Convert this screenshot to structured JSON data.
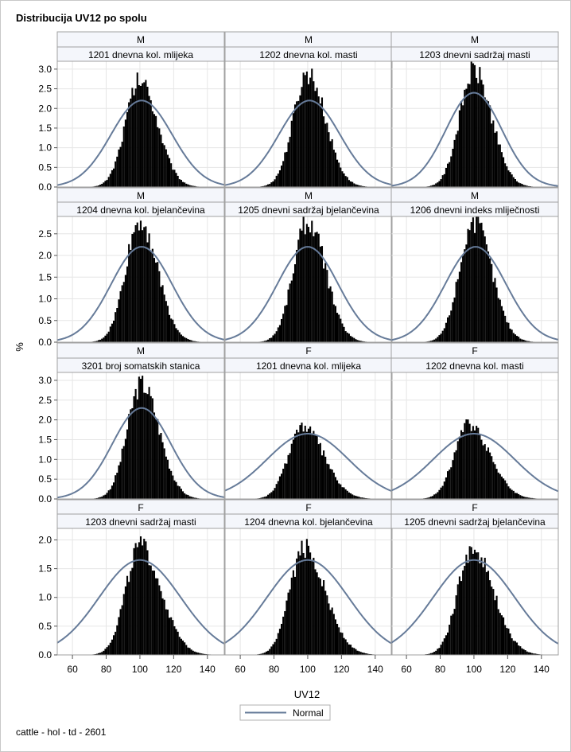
{
  "title": "Distribucija UV12 po spolu",
  "footnote": "cattle - hol - td - 2601",
  "colors": {
    "histogram": "#000000",
    "normal_curve": "#667b99",
    "header_bg": "#f4f6fb",
    "grid": "#e6e6e6"
  },
  "chart_data": {
    "type": "histogram-panel",
    "xlabel": "UV12",
    "ylabel": "%",
    "legend": {
      "items": [
        "Normal"
      ],
      "placement": "bottom-center"
    },
    "x_ticks": [
      60,
      80,
      100,
      120,
      140
    ],
    "xlim": [
      51,
      150
    ],
    "grid": true,
    "rows": [
      {
        "ylim": [
          0,
          3.2
        ],
        "y_ticks": [
          0.0,
          0.5,
          1.0,
          1.5,
          2.0,
          2.5,
          3.0
        ]
      },
      {
        "ylim": [
          0,
          2.9
        ],
        "y_ticks": [
          0.0,
          0.5,
          1.0,
          1.5,
          2.0,
          2.5
        ]
      },
      {
        "ylim": [
          0,
          3.2
        ],
        "y_ticks": [
          0.0,
          0.5,
          1.0,
          1.5,
          2.0,
          2.5,
          3.0
        ]
      },
      {
        "ylim": [
          0,
          2.2
        ],
        "y_ticks": [
          0.0,
          0.5,
          1.0,
          1.5,
          2.0
        ]
      }
    ],
    "panels": [
      {
        "sex": "M",
        "trait": "1201 dnevna kol. mlijeka",
        "row": 0,
        "col": 0,
        "peak": 2.7,
        "peak_x": 100,
        "normal_mean": 101,
        "normal_peak": 2.2
      },
      {
        "sex": "M",
        "trait": "1202 dnevna kol. masti",
        "row": 0,
        "col": 1,
        "peak": 2.9,
        "peak_x": 100,
        "normal_mean": 101,
        "normal_peak": 2.2
      },
      {
        "sex": "M",
        "trait": "1203 dnevni sadržaj masti",
        "row": 0,
        "col": 2,
        "peak": 2.95,
        "peak_x": 100,
        "normal_mean": 100,
        "normal_peak": 2.4
      },
      {
        "sex": "M",
        "trait": "1204 dnevna kol. bjelančevina",
        "row": 1,
        "col": 0,
        "peak": 2.8,
        "peak_x": 100,
        "normal_mean": 101,
        "normal_peak": 2.2
      },
      {
        "sex": "M",
        "trait": "1205 dnevni sadržaj bjelančevina",
        "row": 1,
        "col": 1,
        "peak": 2.8,
        "peak_x": 100,
        "normal_mean": 100,
        "normal_peak": 2.2
      },
      {
        "sex": "M",
        "trait": "1206 dnevni indeks mliječnosti",
        "row": 1,
        "col": 2,
        "peak": 2.8,
        "peak_x": 100,
        "normal_mean": 101,
        "normal_peak": 2.2
      },
      {
        "sex": "M",
        "trait": "3201 broj somatskih stanica",
        "row": 2,
        "col": 0,
        "peak": 2.9,
        "peak_x": 101,
        "normal_mean": 101,
        "normal_peak": 2.3
      },
      {
        "sex": "F",
        "trait": "1201 dnevna kol. mlijeka",
        "row": 2,
        "col": 1,
        "peak": 1.85,
        "peak_x": 97,
        "normal_mean": 100,
        "normal_peak": 1.65
      },
      {
        "sex": "F",
        "trait": "1202 dnevna kol. masti",
        "row": 2,
        "col": 2,
        "peak": 1.9,
        "peak_x": 97,
        "normal_mean": 100,
        "normal_peak": 1.65
      },
      {
        "sex": "F",
        "trait": "1203 dnevni sadržaj masti",
        "row": 3,
        "col": 0,
        "peak": 1.88,
        "peak_x": 100,
        "normal_mean": 100,
        "normal_peak": 1.65
      },
      {
        "sex": "F",
        "trait": "1204 dnevna kol. bjelančevina",
        "row": 3,
        "col": 1,
        "peak": 1.85,
        "peak_x": 98,
        "normal_mean": 100,
        "normal_peak": 1.65
      },
      {
        "sex": "F",
        "trait": "1205 dnevni sadržaj bjelančevina",
        "row": 3,
        "col": 2,
        "peak": 1.85,
        "peak_x": 99,
        "normal_mean": 100,
        "normal_peak": 1.65
      }
    ]
  }
}
